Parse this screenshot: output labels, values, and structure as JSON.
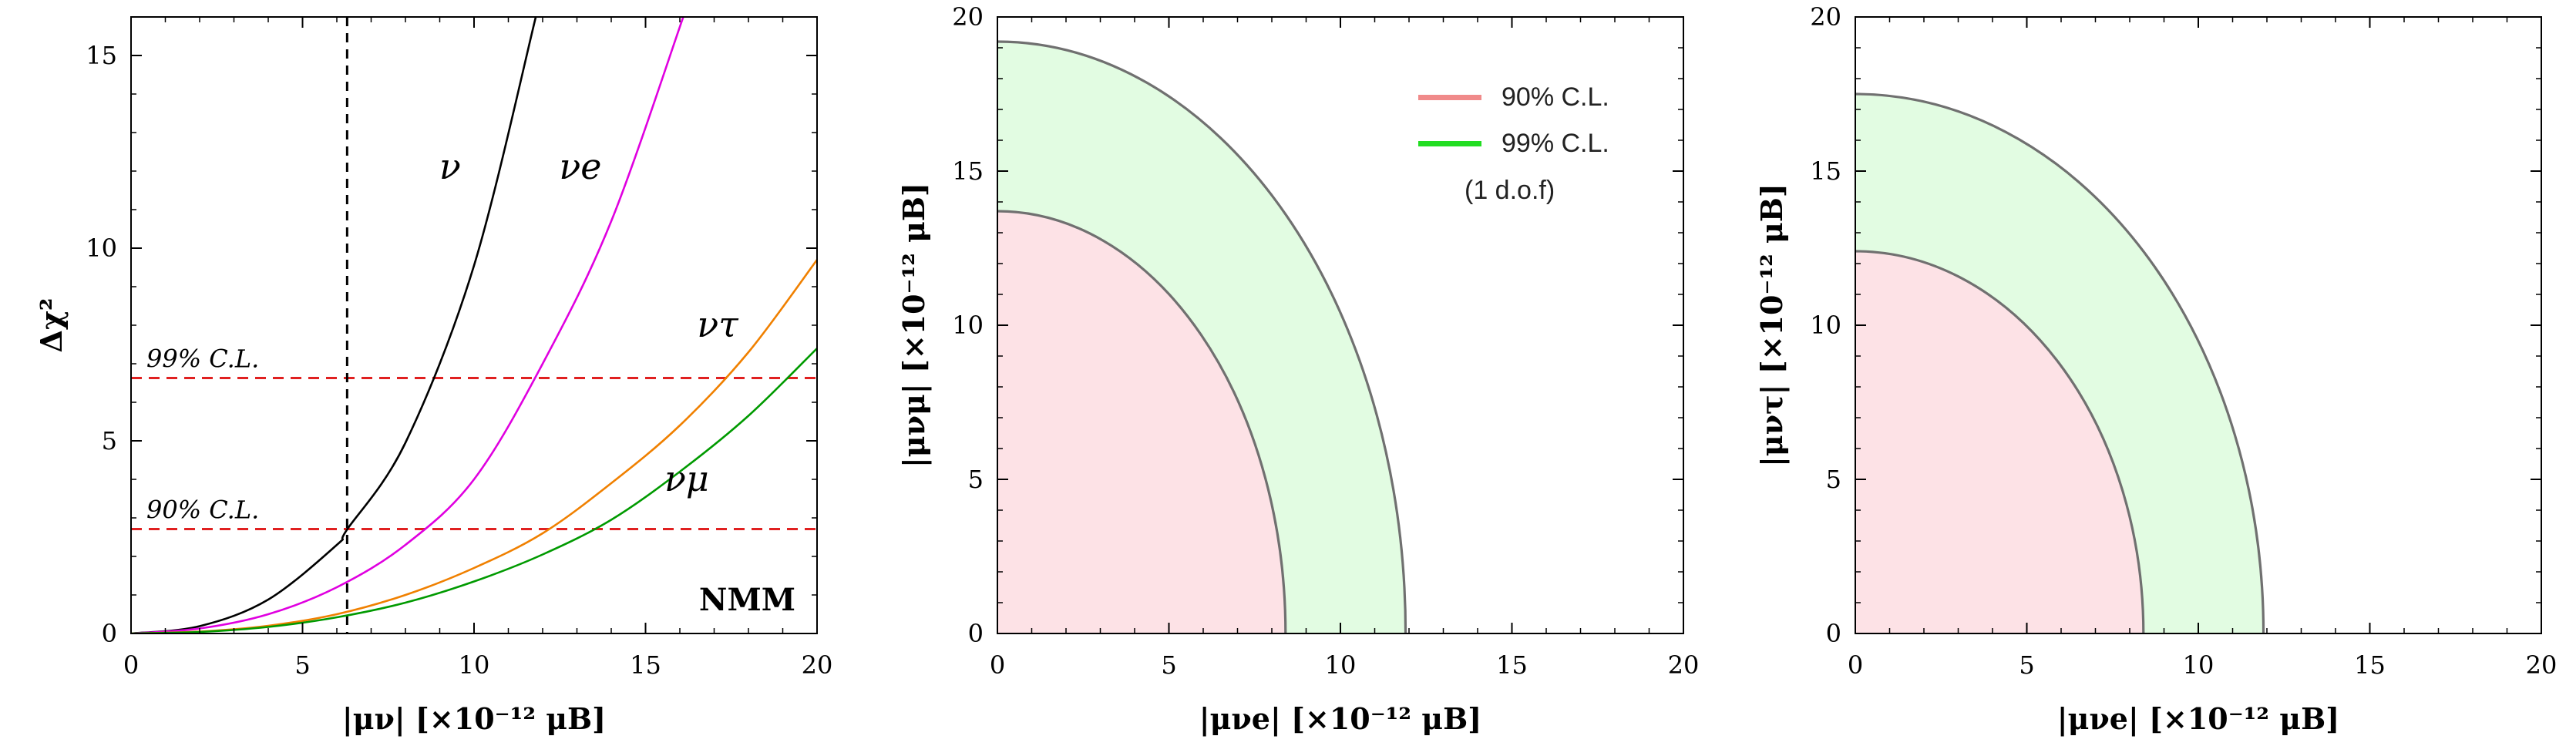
{
  "chart_data": [
    {
      "type": "line",
      "xlabel": "|μν| [×10⁻¹² μB]",
      "ylabel": "Δχ²",
      "xlim": [
        0,
        20
      ],
      "ylim": [
        0,
        16
      ],
      "x_ticks": [
        "0",
        "5",
        "10",
        "15",
        "20"
      ],
      "y_ticks": [
        "0",
        "5",
        "10",
        "15"
      ],
      "series": [
        {
          "name": "ν",
          "color": "#000000",
          "x": [
            0,
            2,
            4,
            6,
            6.3,
            8,
            10,
            11.8
          ],
          "y": [
            0,
            0.19,
            0.88,
            2.3,
            2.7,
            4.95,
            9.55,
            16
          ]
        },
        {
          "name": "νe",
          "color": "#e000e0",
          "x": [
            0,
            2,
            4,
            6,
            8,
            10,
            12,
            14,
            16.1
          ],
          "y": [
            0,
            0.13,
            0.5,
            1.2,
            2.3,
            4.0,
            7.0,
            10.7,
            16
          ]
        },
        {
          "name": "ντ",
          "color": "#f08000",
          "x": [
            0,
            2,
            4,
            6,
            8,
            10,
            12,
            14,
            16,
            18,
            20
          ],
          "y": [
            0,
            0.05,
            0.2,
            0.5,
            1.0,
            1.7,
            2.6,
            3.9,
            5.4,
            7.3,
            9.7
          ]
        },
        {
          "name": "νμ",
          "color": "#009a00",
          "x": [
            0,
            2,
            4,
            6,
            8,
            10,
            12,
            14,
            16,
            18,
            20
          ],
          "y": [
            0,
            0.04,
            0.17,
            0.42,
            0.8,
            1.35,
            2.05,
            2.95,
            4.2,
            5.65,
            7.4
          ]
        }
      ],
      "reference_lines": [
        {
          "label": "99% C.L.",
          "orientation": "horizontal",
          "value": 6.63,
          "color": "#e02020",
          "style": "dashed"
        },
        {
          "label": "90% C.L.",
          "orientation": "horizontal",
          "value": 2.71,
          "color": "#e02020",
          "style": "dashed"
        },
        {
          "label": "",
          "orientation": "vertical",
          "value": 6.3,
          "color": "#000000",
          "style": "dashed"
        }
      ],
      "curve_labels": [
        {
          "text": "ν",
          "x": 9.3,
          "y": 11.8
        },
        {
          "text": "νe",
          "x": 13.1,
          "y": 11.8
        },
        {
          "text": "ντ",
          "x": 17.1,
          "y": 7.7
        },
        {
          "text": "νμ",
          "x": 16.2,
          "y": 3.7
        }
      ],
      "annotation": "NMM"
    },
    {
      "type": "area",
      "xlabel": "|μνe| [×10⁻¹² μB]",
      "ylabel": "|μνμ| [×10⁻¹² μB]",
      "xlim": [
        0,
        20
      ],
      "ylim": [
        0,
        20
      ],
      "x_ticks": [
        "0",
        "5",
        "10",
        "15",
        "20"
      ],
      "y_ticks": [
        "0",
        "5",
        "10",
        "15",
        "20"
      ],
      "regions": [
        {
          "name": "99% C.L.",
          "shape": "quarter-ellipse",
          "x_radius": 11.9,
          "y_radius": 19.2,
          "fill": "#e2fce2",
          "edge": "#707070"
        },
        {
          "name": "90% C.L.",
          "shape": "quarter-ellipse",
          "x_radius": 8.4,
          "y_radius": 13.7,
          "fill": "#fde2e6",
          "edge": "#707070"
        }
      ],
      "legend": {
        "position": "top-right",
        "items": [
          {
            "label": "90% C.L.",
            "color": "#f08a8a"
          },
          {
            "label": "99% C.L.",
            "color": "#22dd22"
          }
        ],
        "note": "(1 d.o.f)"
      }
    },
    {
      "type": "area",
      "xlabel": "|μνe| [×10⁻¹² μB]",
      "ylabel": "|μντ| [×10⁻¹² μB]",
      "xlim": [
        0,
        20
      ],
      "ylim": [
        0,
        20
      ],
      "x_ticks": [
        "0",
        "5",
        "10",
        "15",
        "20"
      ],
      "y_ticks": [
        "0",
        "5",
        "10",
        "15",
        "20"
      ],
      "regions": [
        {
          "name": "99% C.L.",
          "shape": "quarter-ellipse",
          "x_radius": 11.9,
          "y_radius": 17.5,
          "fill": "#e2fce2",
          "edge": "#707070"
        },
        {
          "name": "90% C.L.",
          "shape": "quarter-ellipse",
          "x_radius": 8.4,
          "y_radius": 12.4,
          "fill": "#fde2e6",
          "edge": "#707070"
        }
      ]
    }
  ]
}
